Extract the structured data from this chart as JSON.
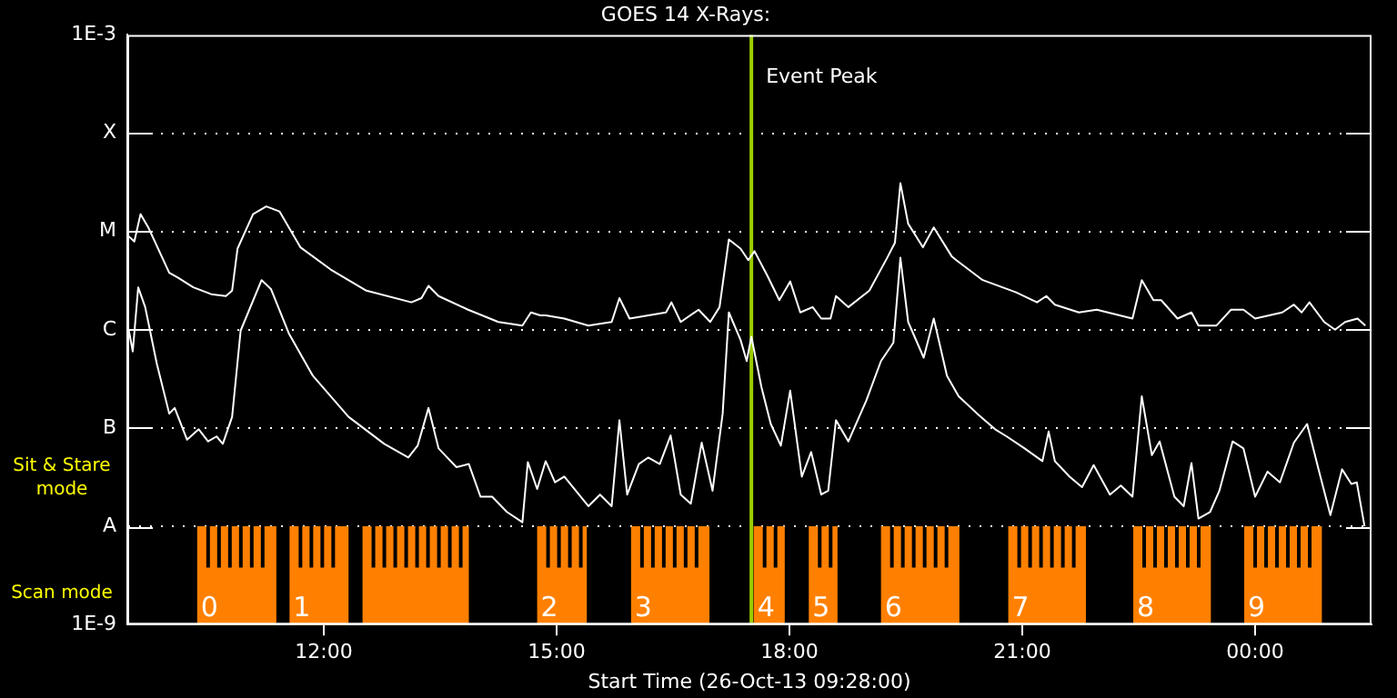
{
  "chart_data": {
    "type": "line",
    "title": "GOES 14 X-Rays:",
    "xlabel": "Start Time (26-Oct-13 09:28:00)",
    "xlim": [
      9.47,
      25.5
    ],
    "xticks": [
      {
        "value": 12,
        "label": "12:00"
      },
      {
        "value": 15,
        "label": "15:00"
      },
      {
        "value": 18,
        "label": "18:00"
      },
      {
        "value": 21,
        "label": "21:00"
      },
      {
        "value": 24,
        "label": "00:00"
      }
    ],
    "log": "y",
    "ylim": [
      1e-09,
      0.001
    ],
    "yticks": [
      {
        "value": 1e-09,
        "label": "1E-9"
      },
      {
        "value": 1e-08,
        "label": "A"
      },
      {
        "value": 1e-07,
        "label": "B"
      },
      {
        "value": 1e-06,
        "label": "C"
      },
      {
        "value": 1e-05,
        "label": "M"
      },
      {
        "value": 0.0001,
        "label": "X"
      },
      {
        "value": 0.001,
        "label": "1E-3"
      }
    ],
    "grid": "y",
    "legend": false,
    "marker": "none",
    "line_style": "solid",
    "series": [
      {
        "color": "#ffffff",
        "x": [
          9.49,
          9.56,
          9.64,
          9.74,
          10.01,
          10.12,
          10.32,
          10.55,
          10.74,
          10.82,
          10.89,
          11.09,
          11.26,
          11.43,
          11.7,
          12.09,
          12.55,
          13.13,
          13.26,
          13.35,
          13.48,
          13.86,
          14.25,
          14.56,
          14.67,
          14.79,
          14.86,
          15.1,
          15.41,
          15.71,
          15.81,
          15.94,
          16.41,
          16.48,
          16.6,
          16.83,
          16.98,
          17.1,
          17.22,
          17.37,
          17.47,
          17.55,
          17.72,
          17.87,
          18.01,
          18.14,
          18.3,
          18.41,
          18.53,
          18.6,
          18.76,
          19.03,
          19.26,
          19.36,
          19.43,
          19.53,
          19.72,
          19.86,
          20.09,
          20.15,
          20.49,
          20.92,
          21.19,
          21.31,
          21.42,
          21.73,
          21.96,
          22.42,
          22.54,
          22.69,
          22.79,
          23.0,
          23.18,
          23.27,
          23.5,
          23.69,
          23.85,
          24.0,
          24.35,
          24.5,
          24.6,
          24.7,
          24.89,
          25.03,
          25.16,
          25.32,
          25.42
        ],
        "values": [
          8.9e-06,
          7.9e-06,
          1.5e-05,
          1.1e-05,
          3.8e-06,
          3.4e-06,
          2.7e-06,
          2.3e-06,
          2.2e-06,
          2.5e-06,
          6.7e-06,
          1.5e-05,
          1.8e-05,
          1.6e-05,
          6.9e-06,
          4.1e-06,
          2.5e-06,
          1.9e-06,
          2.1e-06,
          2.8e-06,
          2.2e-06,
          1.6e-06,
          1.2e-06,
          1.1e-06,
          1.5e-06,
          1.4e-06,
          1.4e-06,
          1.3e-06,
          1.1e-06,
          1.2e-06,
          2.1e-06,
          1.3e-06,
          1.5e-06,
          1.9e-06,
          1.2e-06,
          1.6e-06,
          1.2e-06,
          1.7e-06,
          8.3e-06,
          6.7e-06,
          5.1e-06,
          6.3e-06,
          3.5e-06,
          2e-06,
          3.1e-06,
          1.5e-06,
          1.7e-06,
          1.3e-06,
          1.3e-06,
          2.2e-06,
          1.7e-06,
          2.5e-06,
          5.4e-06,
          7.7e-06,
          3.1e-05,
          1.2e-05,
          6.9e-06,
          1.1e-05,
          5.6e-06,
          5.1e-06,
          3.2e-06,
          2.4e-06,
          1.9e-06,
          2.2e-06,
          1.8e-06,
          1.5e-06,
          1.6e-06,
          1.3e-06,
          3.2e-06,
          2e-06,
          2e-06,
          1.3e-06,
          1.5e-06,
          1.1e-06,
          1.1e-06,
          1.6e-06,
          1.6e-06,
          1.3e-06,
          1.5e-06,
          1.8e-06,
          1.5e-06,
          1.9e-06,
          1.2e-06,
          1e-06,
          1.2e-06,
          1.3e-06,
          1.1e-06
        ]
      },
      {
        "color": "#ffffff",
        "x": [
          9.49,
          9.54,
          9.61,
          9.7,
          9.85,
          10.01,
          10.08,
          10.24,
          10.39,
          10.51,
          10.62,
          10.7,
          10.82,
          10.93,
          11.2,
          11.32,
          11.55,
          11.86,
          12.32,
          12.78,
          13.09,
          13.21,
          13.35,
          13.48,
          13.71,
          13.87,
          14.02,
          14.17,
          14.36,
          14.56,
          14.63,
          14.75,
          14.86,
          14.98,
          15.1,
          15.41,
          15.56,
          15.71,
          15.81,
          15.91,
          16.06,
          16.18,
          16.33,
          16.47,
          16.6,
          16.73,
          16.87,
          17.01,
          17.14,
          17.22,
          17.37,
          17.45,
          17.51,
          17.64,
          17.76,
          17.89,
          18.01,
          18.16,
          18.28,
          18.41,
          18.5,
          18.6,
          18.76,
          18.99,
          19.18,
          19.34,
          19.43,
          19.53,
          19.73,
          19.86,
          20.03,
          20.18,
          20.42,
          20.65,
          20.8,
          21.03,
          21.26,
          21.34,
          21.42,
          21.61,
          21.77,
          21.92,
          22.13,
          22.27,
          22.42,
          22.54,
          22.67,
          22.77,
          22.96,
          23.08,
          23.18,
          23.27,
          23.42,
          23.54,
          23.71,
          23.85,
          24.0,
          24.16,
          24.32,
          24.5,
          24.67,
          24.81,
          24.97,
          25.12,
          25.24,
          25.31,
          25.41
        ],
        "values": [
          9.8e-07,
          6e-07,
          2.7e-06,
          1.7e-06,
          4.5e-07,
          1.4e-07,
          1.6e-07,
          7.6e-08,
          9.7e-08,
          7.3e-08,
          8.2e-08,
          6.9e-08,
          1.3e-07,
          9.8e-07,
          3.2e-06,
          2.6e-06,
          9.2e-07,
          3.4e-07,
          1.3e-07,
          6.9e-08,
          5e-08,
          6.6e-08,
          1.6e-07,
          6.2e-08,
          4e-08,
          4.3e-08,
          2e-08,
          2e-08,
          1.4e-08,
          1.1e-08,
          4.5e-08,
          2.4e-08,
          4.6e-08,
          2.8e-08,
          3.2e-08,
          1.6e-08,
          2.1e-08,
          1.6e-08,
          1.2e-07,
          2.1e-08,
          4.3e-08,
          5e-08,
          4.3e-08,
          8.4e-08,
          2.1e-08,
          1.7e-08,
          7.1e-08,
          2.3e-08,
          1.4e-07,
          1.5e-06,
          7.9e-07,
          4.8e-07,
          8.5e-07,
          2.6e-07,
          1.1e-07,
          6.6e-08,
          2.4e-07,
          3.2e-08,
          5.7e-08,
          2.1e-08,
          2.3e-08,
          1.2e-07,
          7.3e-08,
          1.9e-07,
          4.8e-07,
          7.4e-07,
          5.4e-06,
          1.2e-06,
          5.2e-07,
          1.3e-06,
          3.4e-07,
          2.1e-07,
          1.4e-07,
          9.7e-08,
          8.2e-08,
          6.2e-08,
          4.6e-08,
          9.2e-08,
          4.6e-08,
          3.2e-08,
          2.5e-08,
          4.2e-08,
          2.1e-08,
          2.6e-08,
          2e-08,
          2.1e-07,
          5.3e-08,
          7.3e-08,
          2e-08,
          1.6e-08,
          4.4e-08,
          1.2e-08,
          1.4e-08,
          2.3e-08,
          7.3e-08,
          6.2e-08,
          2e-08,
          3.6e-08,
          2.8e-08,
          7.1e-08,
          1.1e-07,
          4e-08,
          1.3e-08,
          3.8e-08,
          2.7e-08,
          2.8e-08,
          1e-08
        ]
      }
    ],
    "ref_lines": [
      {
        "axis": "x",
        "value": 17.51,
        "label": "Event Peak",
        "color": "#9acd00"
      }
    ],
    "bands": [
      {
        "axis": "x",
        "from": 10.37,
        "to": 11.39,
        "label": "0",
        "color": "#ff8000"
      },
      {
        "axis": "x",
        "from": 11.56,
        "to": 12.32,
        "label": "1",
        "color": "#ff8000"
      },
      {
        "axis": "x",
        "from": 12.5,
        "to": 13.87,
        "label": null,
        "color": "#ff8000"
      },
      {
        "axis": "x",
        "from": 14.75,
        "to": 15.39,
        "label": "2",
        "color": "#ff8000"
      },
      {
        "axis": "x",
        "from": 15.96,
        "to": 16.97,
        "label": "3",
        "color": "#ff8000"
      },
      {
        "axis": "x",
        "from": 17.54,
        "to": 17.94,
        "label": "4",
        "color": "#ff8000"
      },
      {
        "axis": "x",
        "from": 18.25,
        "to": 18.62,
        "label": "5",
        "color": "#ff8000"
      },
      {
        "axis": "x",
        "from": 19.18,
        "to": 20.19,
        "label": "6",
        "color": "#ff8000"
      },
      {
        "axis": "x",
        "from": 20.82,
        "to": 21.82,
        "label": "7",
        "color": "#ff8000"
      },
      {
        "axis": "x",
        "from": 22.43,
        "to": 23.43,
        "label": "8",
        "color": "#ff8000"
      },
      {
        "axis": "x",
        "from": 23.86,
        "to": 24.86,
        "label": "9",
        "color": "#ff8000"
      }
    ],
    "annotations": [
      "Sit & Stare mode",
      "Scan mode"
    ]
  }
}
